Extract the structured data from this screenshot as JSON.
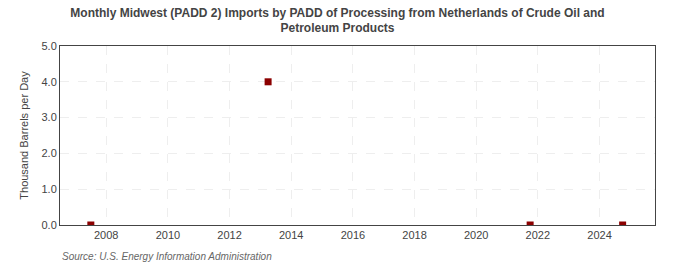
{
  "chart_data": {
    "type": "scatter",
    "title": "Monthly Midwest (PADD 2) Imports by PADD of Processing from Netherlands of Crude Oil and\nPetroleum Products",
    "y_label": "Thousand Barrels per Day",
    "annotations": [
      "Source: U.S. Energy Information Administration"
    ],
    "x": [
      2007.5,
      2013.25,
      2021.75,
      2024.75
    ],
    "values": [
      0.0,
      4.0,
      0.0,
      0.0
    ],
    "color": "#8b0000",
    "marker": "square",
    "xlim": [
      2006.5,
      2025.8
    ],
    "xticks": [
      2008,
      2010,
      2012,
      2014,
      2016,
      2018,
      2020,
      2022,
      2024
    ],
    "ylim": [
      0.0,
      5.0
    ],
    "yticks": [
      {
        "value": 0.0,
        "label": "0.0"
      },
      {
        "value": 1.0,
        "label": "1.0"
      },
      {
        "value": 2.0,
        "label": "2.0"
      },
      {
        "value": 3.0,
        "label": "3.0"
      },
      {
        "value": 4.0,
        "label": "4.0"
      },
      {
        "value": 5.0,
        "label": "5.0"
      }
    ],
    "grid": true
  }
}
